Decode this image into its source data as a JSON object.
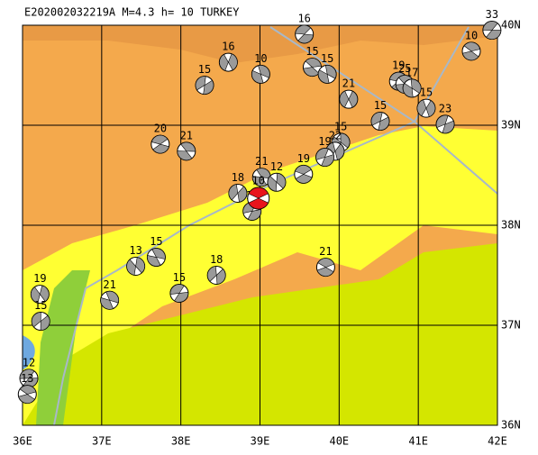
{
  "title": "E202002032219A M=4.3 h= 10 TURKEY",
  "lonlim": [
    36,
    42
  ],
  "latlim": [
    36,
    40
  ],
  "lonticks": [
    {
      "value": 36,
      "label": "36E"
    },
    {
      "value": 37,
      "label": "37E"
    },
    {
      "value": 38,
      "label": "38E"
    },
    {
      "value": 39,
      "label": "39E"
    },
    {
      "value": 40,
      "label": "40E"
    },
    {
      "value": 41,
      "label": "41E"
    },
    {
      "value": 42,
      "label": "42E"
    }
  ],
  "latticks": [
    {
      "value": 36,
      "label": "36N"
    },
    {
      "value": 37,
      "label": "37N"
    },
    {
      "value": 38,
      "label": "38N"
    },
    {
      "value": 39,
      "label": "39N"
    },
    {
      "value": 40,
      "label": "40N"
    }
  ],
  "main_color": "#e8141c",
  "ball_color": "#9a9a9a",
  "events": [
    {
      "lon": 41.93,
      "lat": 39.95,
      "label": "33"
    },
    {
      "lon": 41.67,
      "lat": 39.74,
      "label": "10"
    },
    {
      "lon": 39.01,
      "lat": 39.51,
      "label": "10"
    },
    {
      "lon": 38.6,
      "lat": 39.63,
      "label": "16"
    },
    {
      "lon": 38.3,
      "lat": 39.4,
      "label": "15"
    },
    {
      "lon": 39.56,
      "lat": 39.91,
      "label": "16"
    },
    {
      "lon": 39.66,
      "lat": 39.58,
      "label": "15"
    },
    {
      "lon": 39.85,
      "lat": 39.51,
      "label": "15"
    },
    {
      "lon": 40.12,
      "lat": 39.26,
      "label": "21"
    },
    {
      "lon": 40.52,
      "lat": 39.04,
      "label": "15"
    },
    {
      "lon": 40.75,
      "lat": 39.44,
      "label": "19"
    },
    {
      "lon": 40.83,
      "lat": 39.41,
      "label": "25"
    },
    {
      "lon": 40.92,
      "lat": 39.37,
      "label": "17"
    },
    {
      "lon": 41.1,
      "lat": 39.17,
      "label": "15"
    },
    {
      "lon": 41.34,
      "lat": 39.01,
      "label": "23"
    },
    {
      "lon": 37.74,
      "lat": 38.81,
      "label": "20"
    },
    {
      "lon": 38.07,
      "lat": 38.74,
      "label": "21"
    },
    {
      "lon": 40.02,
      "lat": 38.83,
      "label": "15"
    },
    {
      "lon": 39.95,
      "lat": 38.74,
      "label": "22"
    },
    {
      "lon": 39.82,
      "lat": 38.68,
      "label": "19"
    },
    {
      "lon": 39.55,
      "lat": 38.51,
      "label": "19"
    },
    {
      "lon": 39.02,
      "lat": 38.48,
      "label": "21"
    },
    {
      "lon": 39.21,
      "lat": 38.43,
      "label": "12"
    },
    {
      "lon": 38.72,
      "lat": 38.32,
      "label": "18"
    },
    {
      "lon": 38.9,
      "lat": 38.14,
      "label": "17"
    },
    {
      "lon": 38.98,
      "lat": 38.27,
      "label": "10",
      "main": true
    },
    {
      "lon": 37.69,
      "lat": 37.68,
      "label": "15"
    },
    {
      "lon": 37.43,
      "lat": 37.59,
      "label": "13"
    },
    {
      "lon": 38.45,
      "lat": 37.5,
      "label": "18"
    },
    {
      "lon": 37.98,
      "lat": 37.32,
      "label": "15"
    },
    {
      "lon": 39.83,
      "lat": 37.58,
      "label": "21"
    },
    {
      "lon": 37.1,
      "lat": 37.25,
      "label": "21"
    },
    {
      "lon": 36.22,
      "lat": 37.31,
      "label": "19"
    },
    {
      "lon": 36.23,
      "lat": 37.04,
      "label": "15"
    },
    {
      "lon": 36.08,
      "lat": 36.47,
      "label": "12"
    },
    {
      "lon": 36.06,
      "lat": 36.31,
      "label": "13"
    }
  ]
}
